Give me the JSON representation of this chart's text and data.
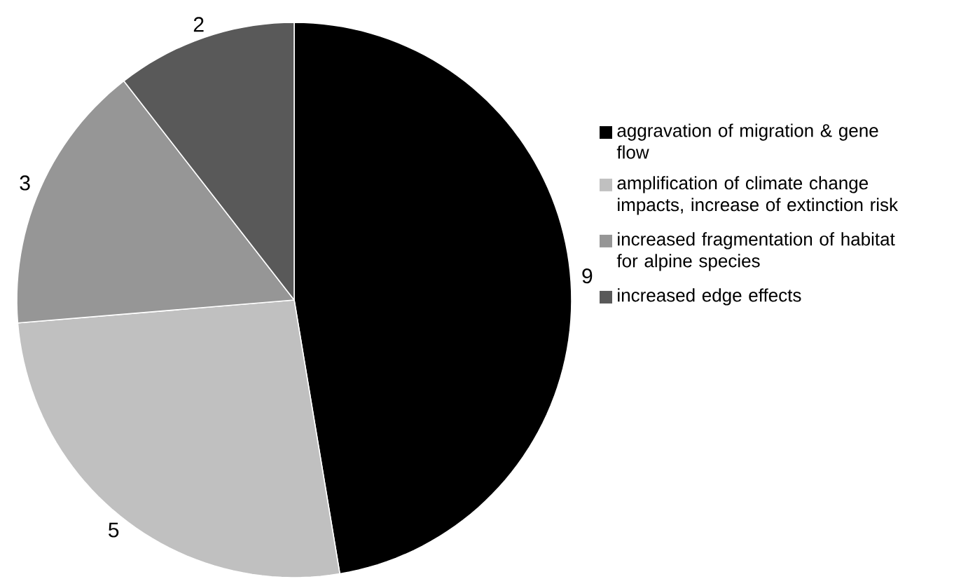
{
  "chart_data": {
    "type": "pie",
    "categories": [
      "aggravation of migration & gene flow",
      "amplification of climate change impacts, increase of extinction risk",
      "increased fragmentation of habitat for alpine species",
      "increased edge effects"
    ],
    "values": [
      9,
      5,
      3,
      2
    ],
    "colors": [
      "#000000",
      "#c0c0c0",
      "#969696",
      "#595959"
    ],
    "data_labels": true,
    "legend": "right"
  }
}
